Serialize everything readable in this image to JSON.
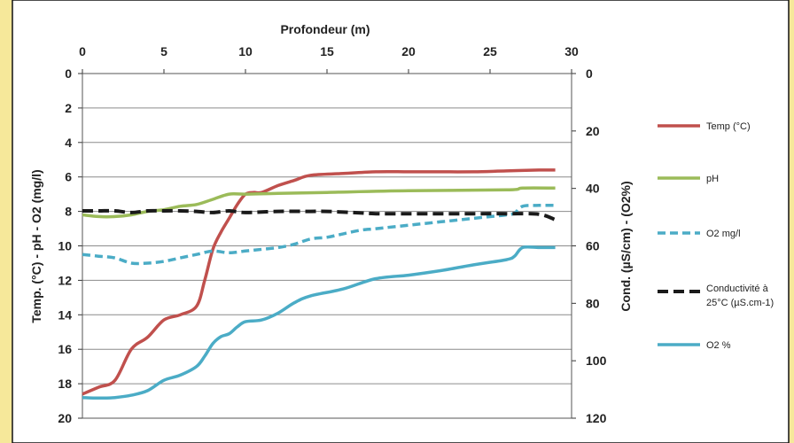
{
  "chart_data": {
    "type": "line",
    "title": "",
    "xlabel": "Profondeur (m)",
    "ylabel_left": "Temp. (°C) - pH - O2 (mg/l)",
    "ylabel_right": "Cond. (µS/cm) - (O2%)",
    "xlim": [
      0,
      30
    ],
    "ylim_left": [
      0,
      20
    ],
    "ylim_right": [
      0,
      120
    ],
    "x_ticks": [
      "0",
      "5",
      "10",
      "15",
      "20",
      "25",
      "30"
    ],
    "y_left_ticks": [
      "0",
      "2",
      "4",
      "6",
      "8",
      "10",
      "12",
      "14",
      "16",
      "18",
      "20"
    ],
    "y_right_ticks": [
      "0",
      "20",
      "40",
      "60",
      "80",
      "100",
      "120"
    ],
    "x_axis_position": "top",
    "y_left_inverted": true,
    "y_right_inverted": true,
    "grid": "horizontal",
    "legend_position": "right",
    "series": [
      {
        "name": "Temp (°C)",
        "axis": "left",
        "color": "#c0504d",
        "style": "solid",
        "x": [
          0,
          1,
          2,
          3,
          4,
          5,
          6,
          7,
          7.5,
          8,
          8.5,
          9,
          9.5,
          10,
          10.5,
          11,
          12,
          13,
          14,
          16,
          18,
          20,
          22,
          24,
          26,
          28,
          29
        ],
        "y": [
          18.6,
          18.2,
          17.8,
          16.0,
          15.3,
          14.3,
          14.0,
          13.5,
          12.0,
          10.2,
          9.2,
          8.4,
          7.6,
          7.0,
          6.9,
          6.9,
          6.5,
          6.2,
          5.9,
          5.8,
          5.7,
          5.7,
          5.7,
          5.7,
          5.65,
          5.6,
          5.6
        ]
      },
      {
        "name": "pH",
        "axis": "left",
        "color": "#9bbb59",
        "style": "solid",
        "x": [
          0,
          1,
          2,
          3,
          4,
          5,
          6,
          7,
          8,
          9,
          10,
          12,
          15,
          20,
          26,
          27,
          29
        ],
        "y": [
          8.2,
          8.3,
          8.3,
          8.2,
          8.0,
          7.9,
          7.7,
          7.6,
          7.3,
          7.0,
          7.0,
          6.95,
          6.9,
          6.8,
          6.75,
          6.65,
          6.65
        ]
      },
      {
        "name": "O2  mg/l",
        "axis": "left",
        "color": "#4bacc6",
        "style": "dashed",
        "x": [
          0,
          1,
          2,
          3,
          4,
          5,
          6,
          7,
          8,
          9,
          10,
          11,
          12,
          13,
          14,
          15,
          16,
          17,
          18,
          20,
          22,
          24,
          26,
          26.5,
          27,
          28,
          29
        ],
        "y": [
          10.5,
          10.6,
          10.7,
          11.0,
          11.0,
          10.9,
          10.7,
          10.5,
          10.3,
          10.4,
          10.3,
          10.2,
          10.1,
          9.9,
          9.6,
          9.5,
          9.3,
          9.1,
          9.0,
          8.8,
          8.6,
          8.4,
          8.2,
          8.1,
          7.7,
          7.65,
          7.65
        ]
      },
      {
        "name": "Conductivité à 25°C (µS.cm-1)",
        "axis": "right",
        "color": "#1a1a1a",
        "style": "dashed",
        "x": [
          0,
          1,
          2,
          3,
          4,
          5,
          6,
          7,
          8,
          9,
          10,
          12,
          14,
          15,
          17,
          18,
          20,
          22,
          24,
          26,
          28,
          29
        ],
        "y": [
          47.8,
          47.8,
          47.8,
          48.4,
          47.8,
          47.8,
          47.8,
          48.0,
          48.4,
          47.8,
          48.4,
          48.0,
          48.0,
          48.0,
          48.5,
          48.8,
          48.8,
          48.8,
          48.8,
          48.8,
          49.0,
          50.9
        ]
      },
      {
        "name": "O2 %",
        "axis": "right",
        "color": "#4bacc6",
        "style": "solid",
        "x": [
          0,
          1,
          2,
          3,
          4,
          5,
          6,
          7,
          7.5,
          8,
          8.5,
          9,
          9.5,
          10,
          11,
          12,
          13,
          14,
          16,
          18,
          20,
          22,
          24,
          26,
          26.5,
          27,
          28,
          29
        ],
        "y": [
          112.8,
          113.0,
          112.8,
          112.0,
          110.4,
          106.8,
          105.0,
          102.0,
          98.4,
          94.0,
          91.6,
          90.6,
          88.2,
          86.4,
          85.8,
          83.4,
          79.8,
          77.4,
          75.0,
          71.4,
          70.2,
          68.6,
          66.6,
          64.8,
          63.6,
          60.6,
          60.6,
          60.6
        ]
      }
    ]
  }
}
